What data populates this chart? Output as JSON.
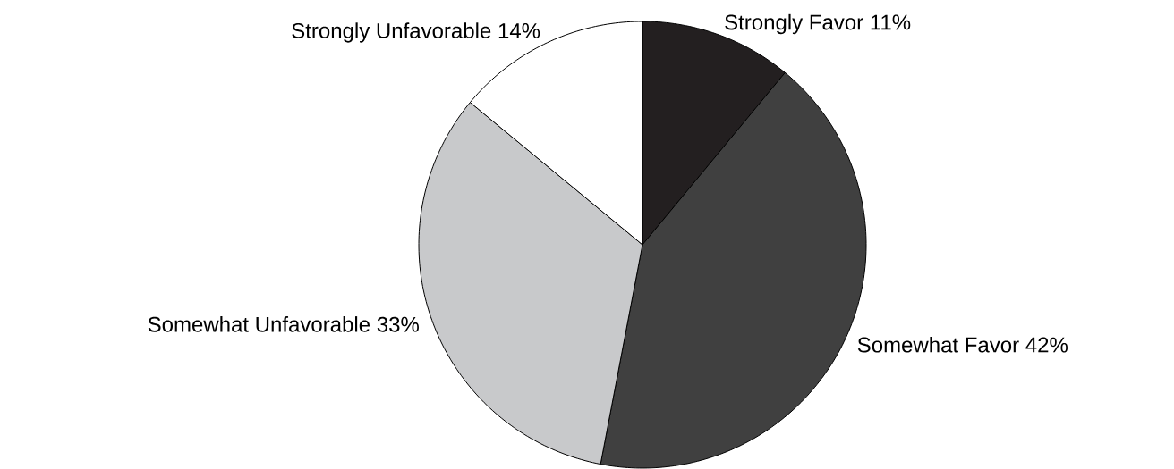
{
  "chart_data": {
    "type": "pie",
    "categories": [
      "Strongly Favor",
      "Somewhat Favor",
      "Somewhat Unfavorable",
      "Strongly Unfavorable"
    ],
    "values": [
      11,
      42,
      33,
      14
    ],
    "value_labels": [
      "11%",
      "42%",
      "33%",
      "14%"
    ],
    "colors": [
      "#231f20",
      "#404040",
      "#c8c9cb",
      "#ffffff"
    ]
  }
}
